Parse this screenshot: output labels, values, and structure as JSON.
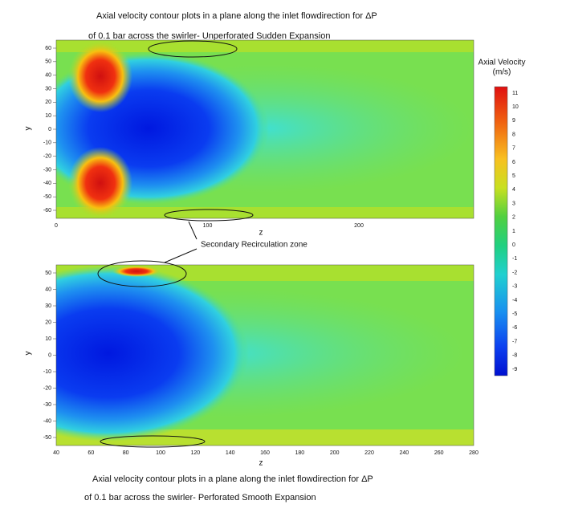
{
  "top_caption": [
    "Axial velocity contour plots in a plane along the inlet flowdirection for ΔP",
    "of 0.1 bar across the swirler-  Unperforated  Sudden Expansion"
  ],
  "top_plot": {
    "y_label": "y",
    "x_label": "z",
    "y_ticks": [
      "60",
      "50",
      "40",
      "30",
      "20",
      "10",
      "0",
      "-10",
      "-20",
      "-30",
      "-40",
      "-50",
      "-60"
    ],
    "x_ticks": [
      "0",
      "100",
      "200"
    ]
  },
  "colorbar": {
    "title": [
      "Axial Velocity",
      "(m/s)"
    ],
    "labels": [
      "11",
      "10",
      "9",
      "8",
      "7",
      "6",
      "5",
      "4",
      "3",
      "2",
      "1",
      "0",
      "-1",
      "-2",
      "-3",
      "-4",
      "-5",
      "-6",
      "-7",
      "-8",
      "-9"
    ]
  },
  "annotation": "Secondary Recirculation zone",
  "bottom_plot": {
    "y_label": "y",
    "x_label": "z",
    "y_ticks": [
      "50",
      "40",
      "30",
      "20",
      "10",
      "0",
      "-10",
      "-20",
      "-30",
      "-40",
      "-50"
    ],
    "x_ticks": [
      "40",
      "60",
      "80",
      "100",
      "120",
      "140",
      "160",
      "180",
      "200",
      "220",
      "240",
      "260",
      "280"
    ]
  },
  "bottom_caption": [
    "Axial velocity contour plots in a plane along the inlet flowdirection for ΔP",
    "of 0.1 bar across the swirler-  Perforated  Smooth Expansion"
  ]
}
